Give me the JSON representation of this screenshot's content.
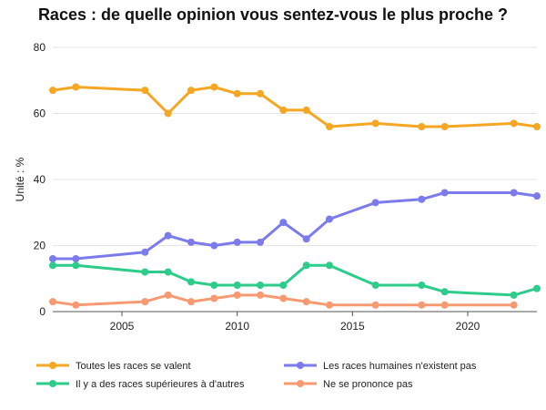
{
  "chart_data": {
    "type": "line",
    "title": "Races : de quelle opinion vous sentez-vous le plus proche ?",
    "ylabel": "Unité : %",
    "xlabel": "",
    "xlim": [
      2002,
      2023
    ],
    "ylim": [
      0,
      80
    ],
    "x_ticks": [
      2005,
      2010,
      2015,
      2020
    ],
    "y_ticks": [
      0,
      20,
      40,
      60,
      80
    ],
    "grid": "horizontal",
    "legend_position": "bottom",
    "series": [
      {
        "name": "Toutes les races se valent",
        "color": "#F5A623",
        "x": [
          2002,
          2003,
          2006,
          2007,
          2008,
          2009,
          2010,
          2011,
          2012,
          2013,
          2014,
          2016,
          2018,
          2019,
          2022,
          2023
        ],
        "values": [
          67,
          68,
          67,
          60,
          67,
          68,
          66,
          66,
          61,
          61,
          56,
          57,
          56,
          56,
          57,
          56
        ]
      },
      {
        "name": "Les races humaines n'existent pas",
        "color": "#7B7BEB",
        "x": [
          2002,
          2003,
          2006,
          2007,
          2008,
          2009,
          2010,
          2011,
          2012,
          2013,
          2014,
          2016,
          2018,
          2019,
          2022,
          2023
        ],
        "values": [
          16,
          16,
          18,
          23,
          21,
          20,
          21,
          21,
          27,
          22,
          28,
          33,
          34,
          36,
          36,
          35
        ]
      },
      {
        "name": "Il y a des races supérieures à d'autres",
        "color": "#2ECC8A",
        "x": [
          2002,
          2003,
          2006,
          2007,
          2008,
          2009,
          2010,
          2011,
          2012,
          2013,
          2014,
          2016,
          2018,
          2019,
          2022,
          2023
        ],
        "values": [
          14,
          14,
          12,
          12,
          9,
          8,
          8,
          8,
          8,
          14,
          14,
          8,
          8,
          6,
          5,
          7
        ]
      },
      {
        "name": "Ne se prononce pas",
        "color": "#F79A72",
        "x": [
          2002,
          2003,
          2006,
          2007,
          2008,
          2009,
          2010,
          2011,
          2012,
          2013,
          2014,
          2016,
          2018,
          2019,
          2022
        ],
        "values": [
          3,
          2,
          3,
          5,
          3,
          4,
          5,
          5,
          4,
          3,
          2,
          2,
          2,
          2,
          2
        ]
      }
    ]
  }
}
